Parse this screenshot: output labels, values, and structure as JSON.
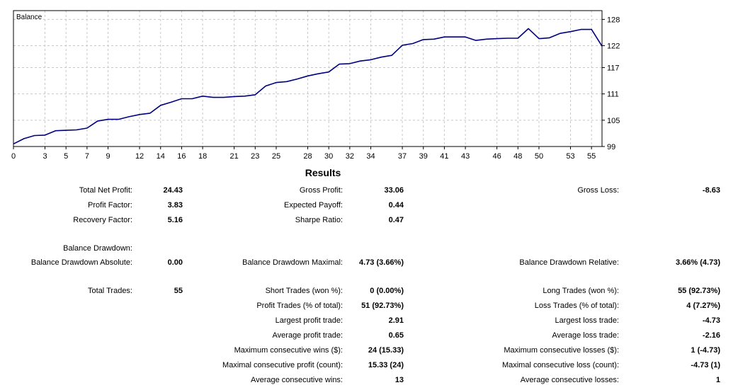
{
  "chart_data": {
    "type": "line",
    "title": "Balance",
    "xlabel": "",
    "ylabel": "",
    "x_ticks": [
      0,
      3,
      5,
      7,
      9,
      12,
      14,
      16,
      18,
      21,
      23,
      25,
      28,
      30,
      32,
      34,
      37,
      39,
      41,
      43,
      46,
      48,
      50,
      53,
      55
    ],
    "y_ticks": [
      99,
      105,
      111,
      117,
      122,
      128
    ],
    "xlim": [
      0,
      56
    ],
    "ylim": [
      99,
      130
    ],
    "grid": true,
    "line_color": "#000080",
    "series": [
      {
        "x": [
          0,
          1,
          2,
          3,
          4,
          5,
          6,
          7,
          8,
          9,
          10,
          11,
          12,
          13,
          14,
          15,
          16,
          17,
          18,
          19,
          20,
          21,
          22,
          23,
          24,
          25,
          26,
          27,
          28,
          29,
          30,
          31,
          32,
          33,
          34,
          35,
          36,
          37,
          38,
          39,
          40,
          41,
          42,
          43,
          44,
          45,
          46,
          47,
          48,
          49,
          50,
          51,
          52,
          53,
          54,
          55,
          56
        ],
        "y": [
          99.6,
          100.8,
          101.5,
          101.6,
          102.6,
          102.7,
          102.8,
          103.2,
          104.8,
          105.2,
          105.2,
          105.8,
          106.3,
          106.6,
          108.4,
          109.1,
          109.9,
          109.9,
          110.5,
          110.2,
          110.2,
          110.4,
          110.5,
          110.8,
          112.8,
          113.6,
          113.8,
          114.4,
          115.1,
          115.6,
          116.0,
          117.8,
          117.9,
          118.5,
          118.8,
          119.4,
          119.8,
          122.1,
          122.5,
          123.4,
          123.5,
          124.0,
          124.0,
          124.0,
          123.2,
          123.5,
          123.6,
          123.7,
          123.7,
          125.9,
          123.6,
          123.8,
          124.8,
          125.2,
          125.7,
          125.7,
          121.9
        ]
      }
    ]
  },
  "results": {
    "title": "Results",
    "rows": [
      {
        "c1l": "Total Net Profit:",
        "c1v": "24.43",
        "c2l": "Gross Profit:",
        "c2v": "33.06",
        "c3l": "Gross Loss:",
        "c3v": "-8.63"
      },
      {
        "c1l": "Profit Factor:",
        "c1v": "3.83",
        "c2l": "Expected Payoff:",
        "c2v": "0.44",
        "c3l": "",
        "c3v": ""
      },
      {
        "c1l": "Recovery Factor:",
        "c1v": "5.16",
        "c2l": "Sharpe Ratio:",
        "c2v": "0.47",
        "c3l": "",
        "c3v": ""
      },
      {
        "c1l": "Balance Drawdown:",
        "c1v": "",
        "c2l": "",
        "c2v": "",
        "c3l": "",
        "c3v": ""
      },
      {
        "c1l": "Balance Drawdown Absolute:",
        "c1v": "0.00",
        "c2l": "Balance Drawdown Maximal:",
        "c2v": "4.73 (3.66%)",
        "c3l": "Balance Drawdown Relative:",
        "c3v": "3.66% (4.73)"
      },
      {
        "c1l": "Total Trades:",
        "c1v": "55",
        "c2l": "Short Trades (won %):",
        "c2v": "0 (0.00%)",
        "c3l": "Long Trades (won %):",
        "c3v": "55 (92.73%)"
      },
      {
        "c1l": "",
        "c1v": "",
        "c2l": "Profit Trades (% of total):",
        "c2v": "51 (92.73%)",
        "c3l": "Loss Trades (% of total):",
        "c3v": "4 (7.27%)"
      },
      {
        "c1l": "",
        "c1v": "",
        "c2l": "Largest profit trade:",
        "c2v": "2.91",
        "c3l": "Largest loss trade:",
        "c3v": "-4.73"
      },
      {
        "c1l": "",
        "c1v": "",
        "c2l": "Average profit trade:",
        "c2v": "0.65",
        "c3l": "Average loss trade:",
        "c3v": "-2.16"
      },
      {
        "c1l": "",
        "c1v": "",
        "c2l": "Maximum consecutive wins ($):",
        "c2v": "24 (15.33)",
        "c3l": "Maximum consecutive losses ($):",
        "c3v": "1 (-4.73)"
      },
      {
        "c1l": "",
        "c1v": "",
        "c2l": "Maximal consecutive profit (count):",
        "c2v": "15.33 (24)",
        "c3l": "Maximal consecutive loss (count):",
        "c3v": "-4.73 (1)"
      },
      {
        "c1l": "",
        "c1v": "",
        "c2l": "Average consecutive wins:",
        "c2v": "13",
        "c3l": "Average consecutive losses:",
        "c3v": "1"
      }
    ]
  }
}
